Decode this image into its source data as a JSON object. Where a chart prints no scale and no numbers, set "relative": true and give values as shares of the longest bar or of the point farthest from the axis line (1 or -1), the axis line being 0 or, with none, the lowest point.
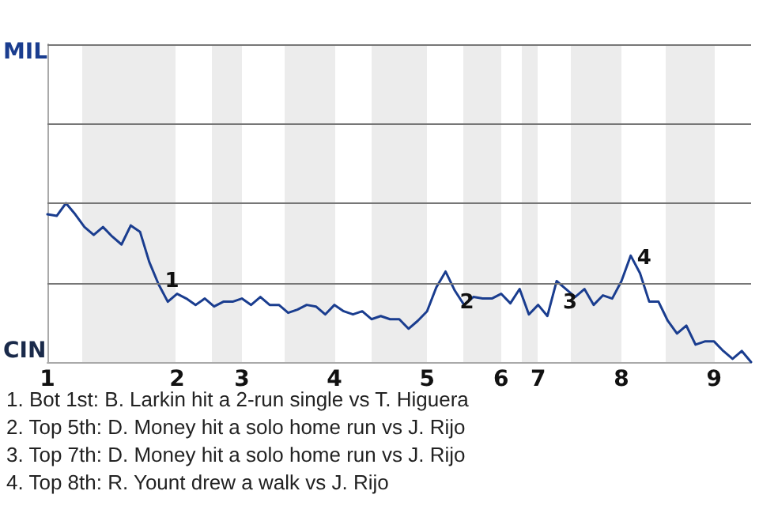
{
  "chart_data": {
    "type": "line",
    "relative": true,
    "categories": [
      "1",
      null,
      null,
      null,
      null,
      null,
      null,
      null,
      null,
      null,
      null,
      null,
      null,
      null,
      "2",
      null,
      null,
      null,
      null,
      null,
      null,
      "3",
      null,
      null,
      null,
      null,
      null,
      null,
      null,
      null,
      null,
      "4",
      null,
      null,
      null,
      null,
      null,
      null,
      null,
      null,
      null,
      "5",
      null,
      null,
      null,
      null,
      null,
      null,
      null,
      "6",
      null,
      null,
      null,
      "7",
      null,
      null,
      null,
      null,
      null,
      null,
      null,
      null,
      "8",
      null,
      null,
      null,
      null,
      null,
      null,
      null,
      null,
      null,
      "9",
      null,
      null,
      null,
      null
    ],
    "series": [
      {
        "color": "#1a3d8f",
        "values": [
          0.93,
          0.92,
          1,
          0.93,
          0.85,
          0.8,
          0.85,
          0.79,
          0.74,
          0.86,
          0.82,
          0.63,
          0.49,
          0.38,
          0.43,
          0.4,
          0.36,
          0.4,
          0.35,
          0.38,
          0.38,
          0.4,
          0.36,
          0.41,
          0.36,
          0.36,
          0.31,
          0.33,
          0.36,
          0.35,
          0.3,
          0.36,
          0.32,
          0.3,
          0.32,
          0.27,
          0.29,
          0.27,
          0.27,
          0.21,
          0.26,
          0.32,
          0.47,
          0.57,
          0.45,
          0.36,
          0.41,
          0.4,
          0.4,
          0.43,
          0.37,
          0.46,
          0.3,
          0.36,
          0.29,
          0.51,
          0.46,
          0.41,
          0.46,
          0.36,
          0.42,
          0.4,
          0.51,
          0.67,
          0.56,
          0.38,
          0.38,
          0.26,
          0.18,
          0.23,
          0.11,
          0.13,
          0.13,
          0.07,
          0.02,
          0.07,
          0
        ]
      }
    ],
    "marker": "none",
    "line_style": "solid",
    "ref_lines": [
      {
        "axis": "y",
        "value": 0.5,
        "color": "#777777"
      },
      {
        "axis": "y",
        "value": 1,
        "color": "#777777"
      },
      {
        "axis": "y",
        "value": 1.5,
        "color": "#777777"
      },
      {
        "axis": "y",
        "value": 2,
        "color": "#777777"
      }
    ],
    "annotations": [
      "MIL",
      "CIN",
      "1",
      "2",
      "3",
      "4",
      "1. Bot 1st: B. Larkin hit a 2-run single vs T. Higuera",
      "2. Top 5th: D. Money hit a solo home run vs J. Rijo",
      "3. Top 7th: D. Money hit a solo home run vs J. Rijo",
      "4. Top 8th: R. Yount drew a walk vs J. Rijo"
    ]
  }
}
